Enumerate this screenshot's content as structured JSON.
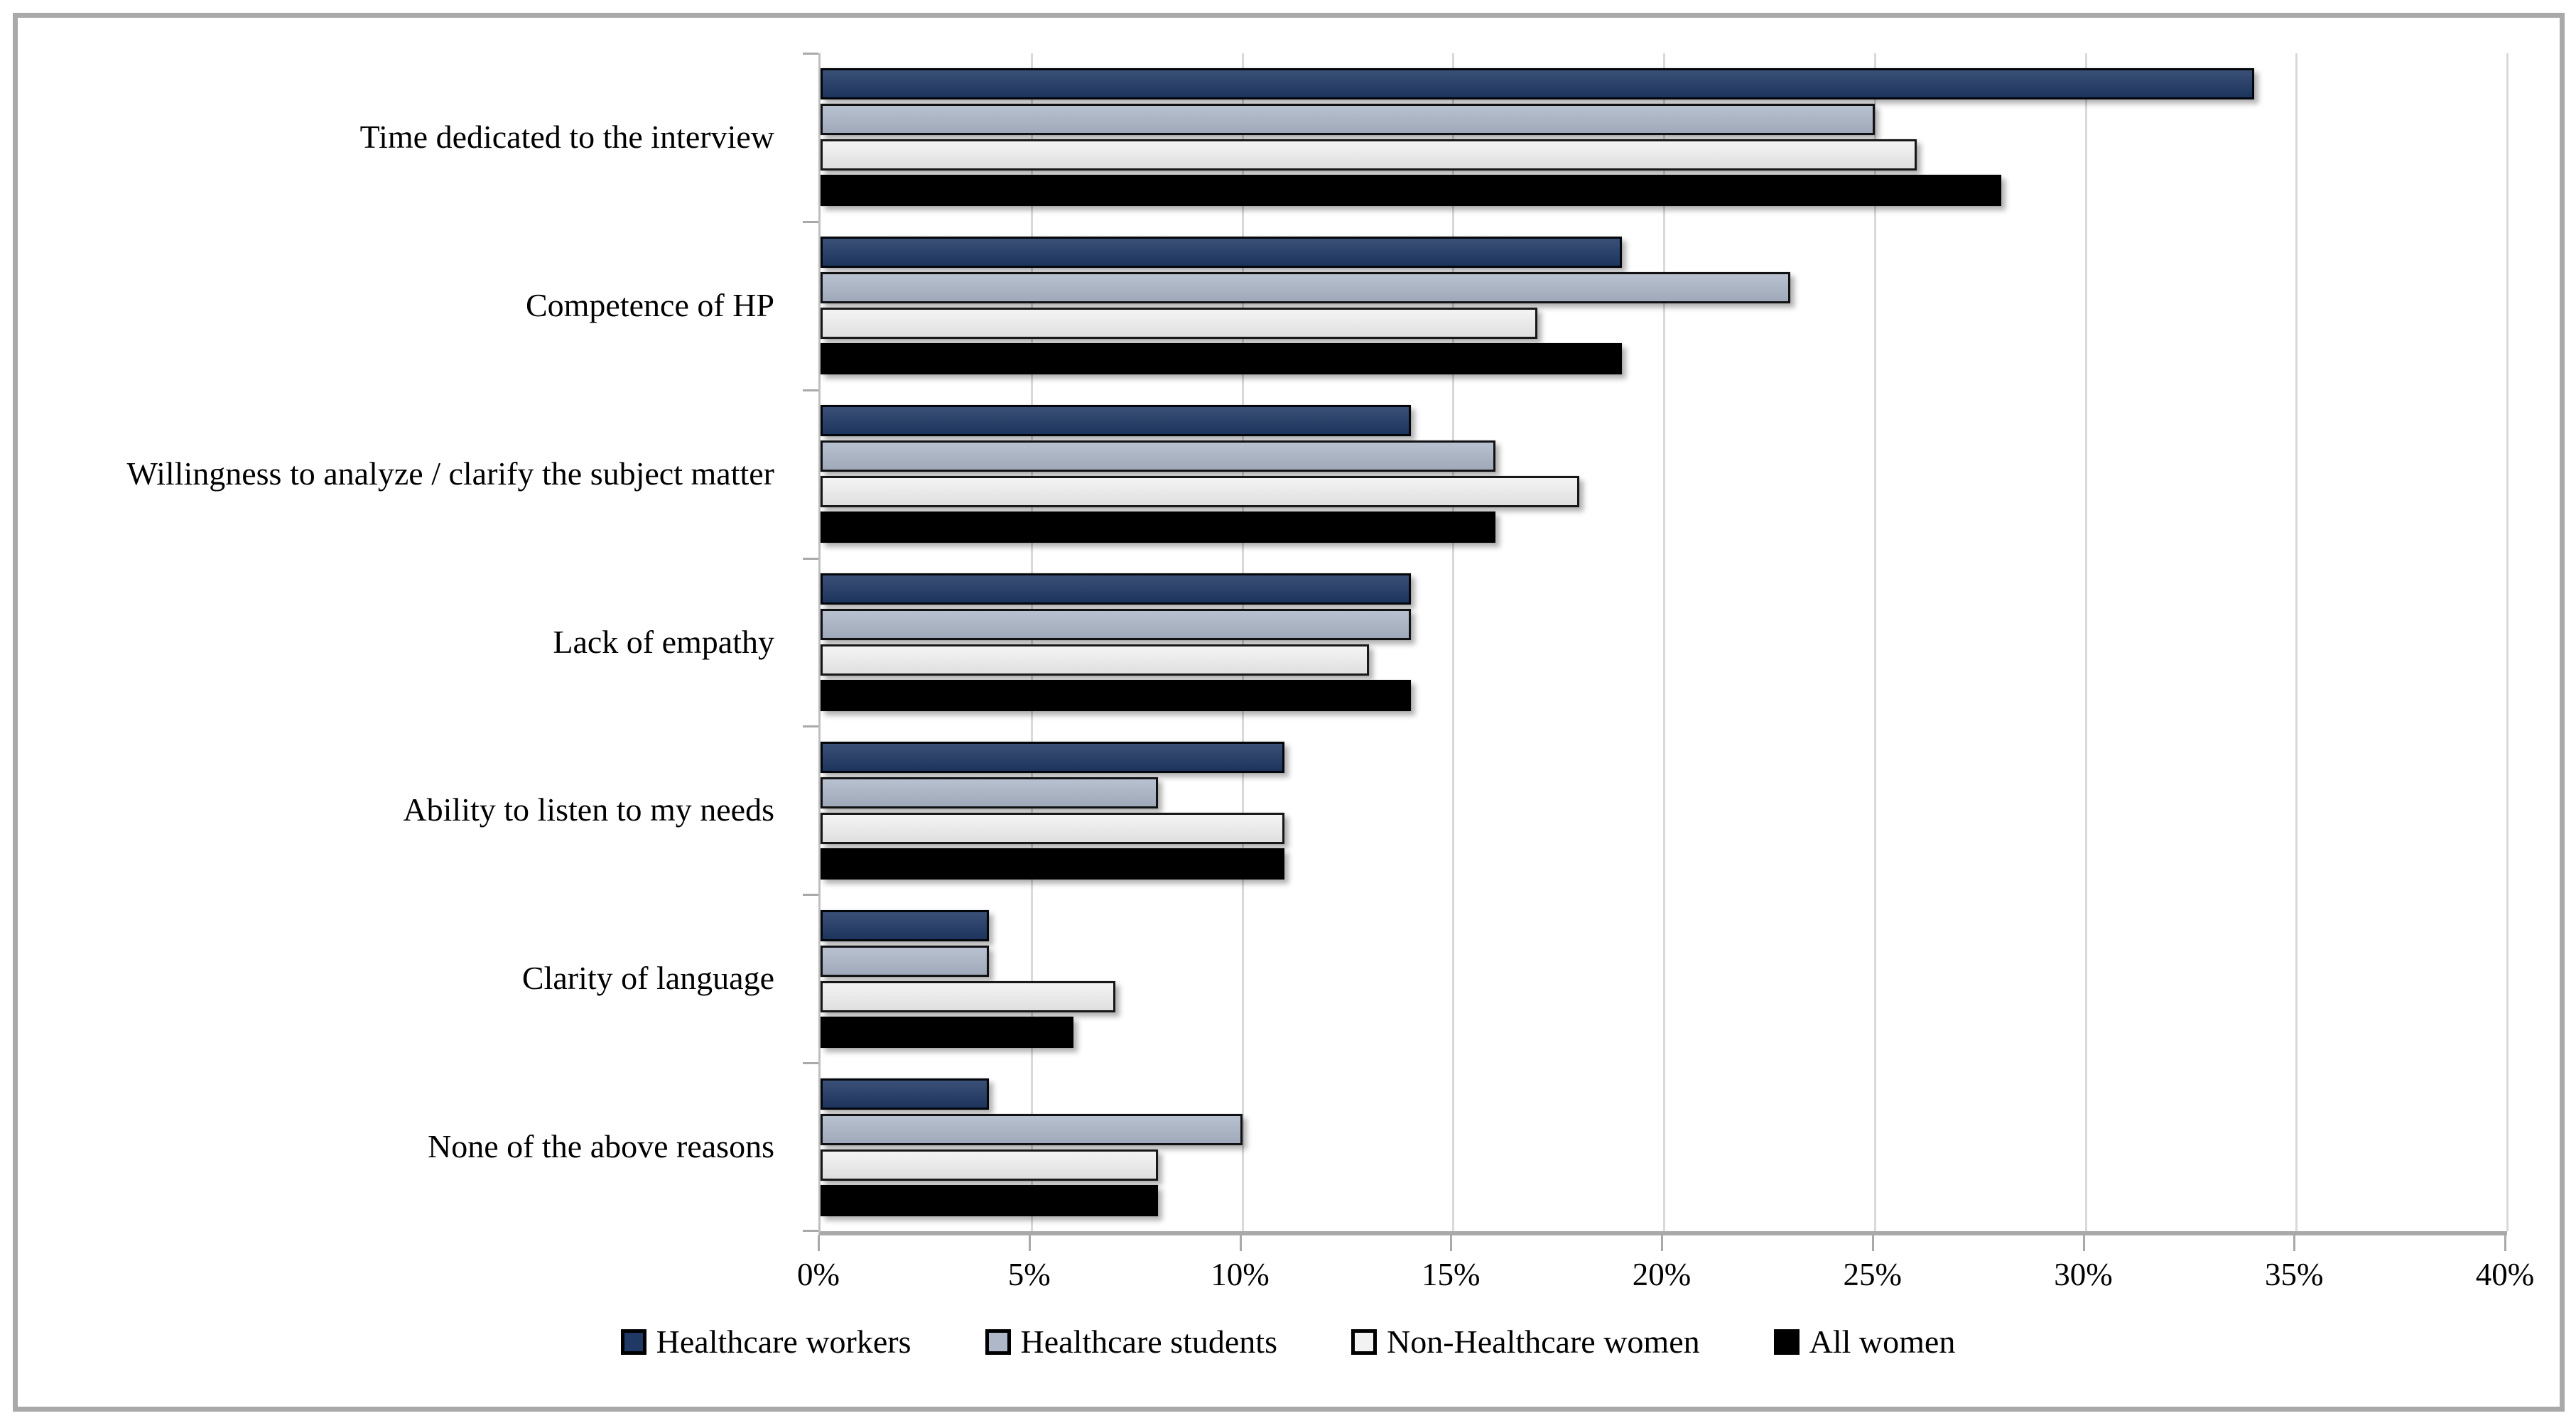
{
  "frame": {
    "background": "#FFFFFF",
    "border_color": "#A9A9A9"
  },
  "chart_data": {
    "type": "bar",
    "orientation": "horizontal",
    "title": "",
    "xlabel": "",
    "ylabel": "",
    "categories": [
      "Time dedicated to the interview",
      "Competence of HP",
      "Willingness to analyze / clarify the subject matter",
      "Lack of empathy",
      "Ability to listen to my needs",
      "Clarity of language",
      "None of the above reasons"
    ],
    "series": [
      {
        "name": "Healthcare workers",
        "color": "#1F3864",
        "values": [
          34,
          19,
          14,
          14,
          11,
          4,
          4
        ]
      },
      {
        "name": "Healthcare students",
        "color": "#AEB8C9",
        "values": [
          25,
          23,
          16,
          14,
          8,
          4,
          10
        ]
      },
      {
        "name": "Non-Healthcare women",
        "color": "#F2F2F2",
        "values": [
          26,
          17,
          18,
          13,
          11,
          7,
          8
        ]
      },
      {
        "name": "All women",
        "color": "#000000",
        "values": [
          28,
          19,
          16,
          14,
          11,
          6,
          8
        ]
      }
    ],
    "xlim": [
      0,
      40
    ],
    "x_ticks": [
      "0%",
      "5%",
      "10%",
      "15%",
      "20%",
      "25%",
      "30%",
      "35%",
      "40%"
    ],
    "grid": true,
    "gridline_color": "#D9D9D9",
    "axis_color": "#A9A9A9",
    "legend_position": "bottom"
  }
}
